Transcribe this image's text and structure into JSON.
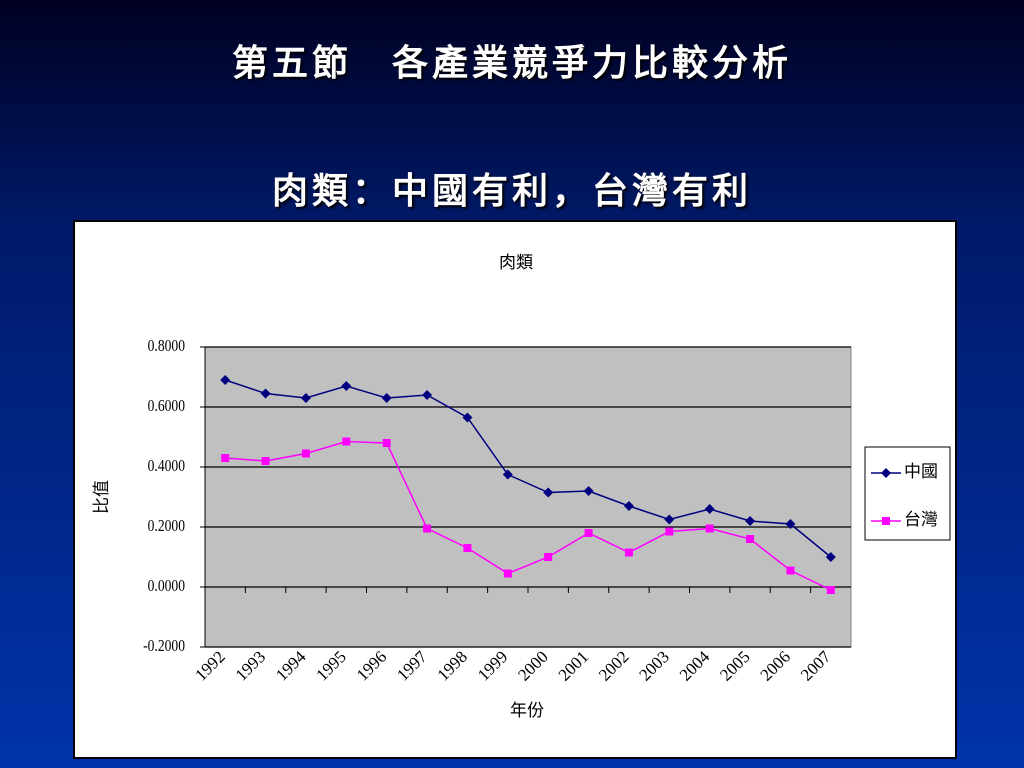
{
  "slide": {
    "title": "第五節　各產業競爭力比較分析",
    "subtitle": "肉類：中國有利，台灣有利"
  },
  "chart_data": {
    "type": "line",
    "title": "肉類",
    "x_label": "年份",
    "y_label": "比值",
    "categories": [
      "1992",
      "1993",
      "1994",
      "1995",
      "1996",
      "1997",
      "1998",
      "1999",
      "2000",
      "2001",
      "2002",
      "2003",
      "2004",
      "2005",
      "2006",
      "2007"
    ],
    "series": [
      {
        "name": "中國",
        "color": "#000080",
        "marker": "diamond",
        "values": [
          0.69,
          0.645,
          0.63,
          0.67,
          0.63,
          0.64,
          0.565,
          0.375,
          0.315,
          0.32,
          0.27,
          0.225,
          0.26,
          0.22,
          0.21,
          0.1
        ]
      },
      {
        "name": "台灣",
        "color": "#ff00ff",
        "marker": "square",
        "values": [
          0.43,
          0.42,
          0.445,
          0.485,
          0.48,
          0.195,
          0.13,
          0.045,
          0.1,
          0.18,
          0.115,
          0.185,
          0.195,
          0.16,
          0.055,
          -0.01
        ]
      }
    ],
    "ylim": [
      -0.2,
      0.8
    ],
    "yticks": [
      {
        "value": -0.2,
        "label": "-0.2000"
      },
      {
        "value": 0,
        "label": "0.0000"
      },
      {
        "value": 0.2,
        "label": "0.2000"
      },
      {
        "value": 0.4,
        "label": "0.4000"
      },
      {
        "value": 0.6,
        "label": "0.6000"
      },
      {
        "value": 0.8,
        "label": "0.8000"
      }
    ],
    "grid": true,
    "legend": "right",
    "plot_background": "#c0c0c0"
  }
}
